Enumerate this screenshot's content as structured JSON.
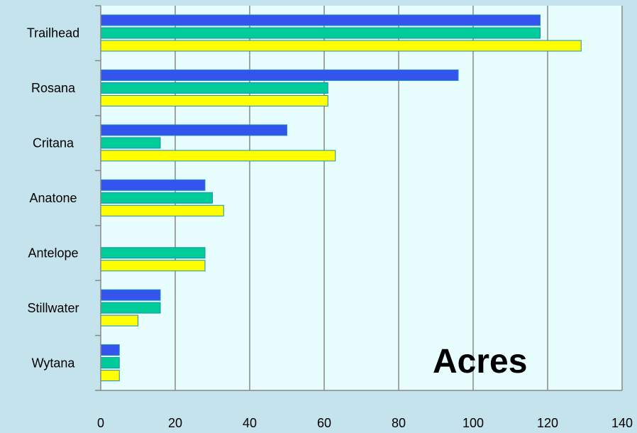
{
  "chart_data": {
    "type": "bar",
    "orientation": "horizontal",
    "categories": [
      "Trailhead",
      "Rosana",
      "Critana",
      "Anatone",
      "Antelope",
      "Stillwater",
      "Wytana"
    ],
    "series": [
      {
        "values": [
          118,
          96,
          50,
          28,
          null,
          16,
          5
        ],
        "color": "#3355ee"
      },
      {
        "values": [
          118,
          61,
          16,
          30,
          28,
          16,
          5
        ],
        "color": "#00cc99"
      },
      {
        "values": [
          129,
          61,
          63,
          33,
          28,
          10,
          5
        ],
        "color": "#ffff00"
      }
    ],
    "xlim": [
      0,
      140
    ],
    "x_ticks": [
      "0",
      "20",
      "40",
      "60",
      "80",
      "100",
      "120",
      "140"
    ],
    "grid": "vertical",
    "annotation": "Acres",
    "colors": {
      "background": "#c5e3ec",
      "plot_area": "#e8fdfd",
      "gridline": "#888888"
    }
  }
}
